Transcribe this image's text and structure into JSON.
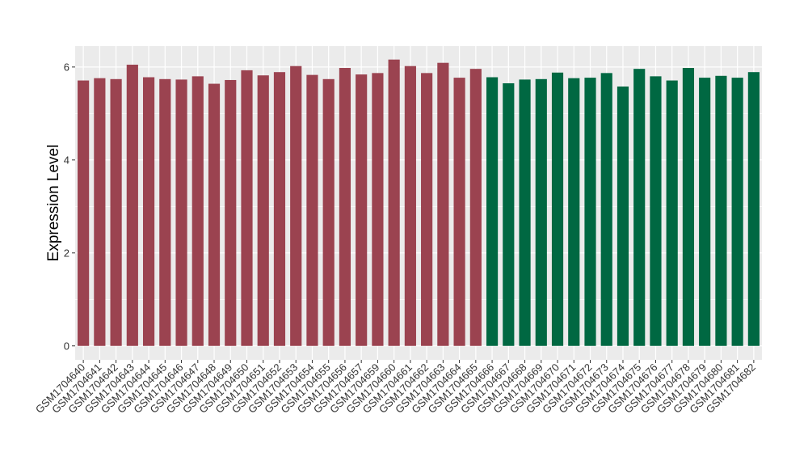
{
  "chart_data": {
    "type": "bar",
    "ylabel": "Expression Level",
    "xlabel": "",
    "ylim": [
      -0.3,
      6.45
    ],
    "yticks": [
      0,
      2,
      4,
      6
    ],
    "grid": true,
    "panel_background": "#ebebeb",
    "grid_color": "#ffffff",
    "categories": [
      "GSM1704640",
      "GSM1704641",
      "GSM1704642",
      "GSM1704643",
      "GSM1704644",
      "GSM1704645",
      "GSM1704646",
      "GSM1704647",
      "GSM1704648",
      "GSM1704649",
      "GSM1704650",
      "GSM1704651",
      "GSM1704652",
      "GSM1704653",
      "GSM1704654",
      "GSM1704655",
      "GSM1704656",
      "GSM1704657",
      "GSM1704659",
      "GSM1704660",
      "GSM1704661",
      "GSM1704662",
      "GSM1704663",
      "GSM1704664",
      "GSM1704665",
      "GSM1704666",
      "GSM1704667",
      "GSM1704668",
      "GSM1704669",
      "GSM1704670",
      "GSM1704671",
      "GSM1704672",
      "GSM1704673",
      "GSM1704674",
      "GSM1704675",
      "GSM1704676",
      "GSM1704677",
      "GSM1704678",
      "GSM1704679",
      "GSM1704680",
      "GSM1704681",
      "GSM1704682"
    ],
    "values": [
      5.71,
      5.76,
      5.74,
      6.05,
      5.78,
      5.74,
      5.73,
      5.8,
      5.64,
      5.72,
      5.93,
      5.82,
      5.89,
      6.02,
      5.83,
      5.74,
      5.98,
      5.84,
      5.87,
      6.16,
      6.02,
      5.87,
      6.09,
      5.77,
      5.96,
      5.78,
      5.65,
      5.73,
      5.74,
      5.88,
      5.76,
      5.77,
      5.87,
      5.58,
      5.96,
      5.8,
      5.71,
      5.98,
      5.77,
      5.81,
      5.77,
      5.89
    ],
    "groups": [
      "a",
      "a",
      "a",
      "a",
      "a",
      "a",
      "a",
      "a",
      "a",
      "a",
      "a",
      "a",
      "a",
      "a",
      "a",
      "a",
      "a",
      "a",
      "a",
      "a",
      "a",
      "a",
      "a",
      "a",
      "a",
      "b",
      "b",
      "b",
      "b",
      "b",
      "b",
      "b",
      "b",
      "b",
      "b",
      "b",
      "b",
      "b",
      "b",
      "b",
      "b",
      "b"
    ],
    "colors": {
      "a": "#9b4350",
      "b": "#006842"
    }
  }
}
